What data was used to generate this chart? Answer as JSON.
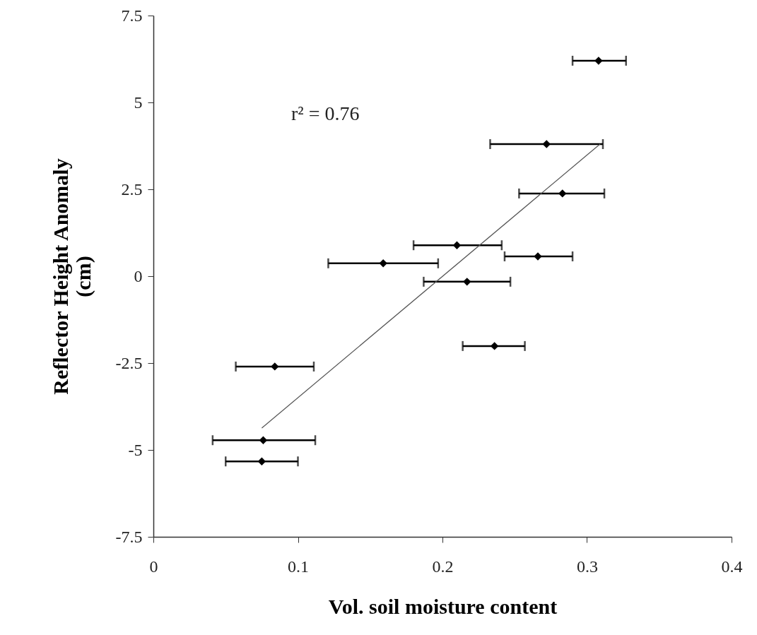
{
  "chart_data": {
    "type": "scatter",
    "xlabel": "Vol. soil moisture content",
    "ylabel": "Reflector Height Anomaly\n(cm)",
    "xlim": [
      0,
      0.4
    ],
    "xticks": [
      0,
      0.1,
      0.2,
      0.3,
      0.4
    ],
    "ylim": [
      -7.5,
      7.5
    ],
    "yticks": [
      -7.5,
      -5,
      -2.5,
      0,
      2.5,
      5,
      7.5
    ],
    "grid": false,
    "marker": "diamond",
    "annotations": [
      "r² = 0.76"
    ],
    "series": [
      {
        "color": "#000000",
        "x": [
          0.308,
          0.272,
          0.283,
          0.21,
          0.266,
          0.159,
          0.217,
          0.236,
          0.084,
          0.076,
          0.075
        ],
        "values": [
          6.2,
          3.8,
          2.38,
          0.89,
          0.57,
          0.37,
          -0.16,
          -2.01,
          -2.6,
          -4.72,
          -5.33
        ],
        "xerrors": [
          [
            0.29,
            0.327
          ],
          [
            0.233,
            0.311
          ],
          [
            0.253,
            0.312
          ],
          [
            0.18,
            0.241
          ],
          [
            0.243,
            0.29
          ],
          [
            0.121,
            0.197
          ],
          [
            0.187,
            0.247
          ],
          [
            0.214,
            0.257
          ],
          [
            0.057,
            0.111
          ],
          [
            0.041,
            0.112
          ],
          [
            0.05,
            0.1
          ]
        ]
      },
      {
        "type": "line",
        "marker": "none",
        "color": "#555555",
        "x": [
          0.075,
          0.309
        ],
        "values": [
          -4.37,
          3.8
        ]
      }
    ]
  }
}
